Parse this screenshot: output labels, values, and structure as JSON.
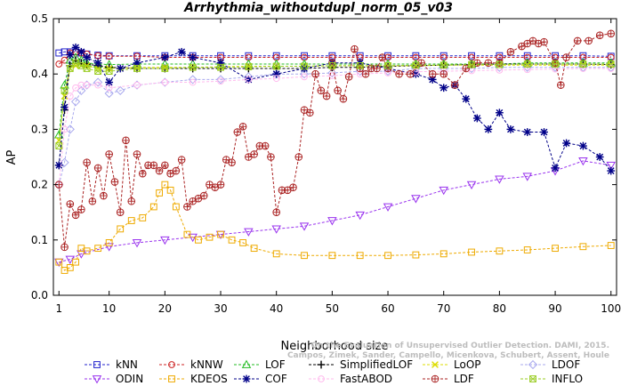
{
  "chart_data": {
    "type": "line",
    "title": "Arrhythmia_withoutdupl_norm_05_v03",
    "xlabel": "Neighborhood size",
    "ylabel": "AP",
    "xlim": [
      0,
      101
    ],
    "ylim": [
      0,
      0.5
    ],
    "xticks": [
      1,
      10,
      20,
      30,
      40,
      50,
      60,
      70,
      80,
      90,
      100
    ],
    "yticks": [
      0.0,
      0.1,
      0.2,
      0.3,
      0.4,
      0.5
    ],
    "grid": false,
    "legend_position": "bottom",
    "watermark": [
      "Campos, Zimek, Sander, Campello, Micenkova, Schubert, Assent, Houle",
      "On the Evaluation of Unsupervised Outlier Detection. DAMI, 2015."
    ],
    "series": [
      {
        "name": "kNN",
        "color": "#2222cc",
        "marker": "square",
        "x": [
          1,
          2,
          3,
          4,
          5,
          6,
          8,
          10,
          15,
          20,
          25,
          30,
          35,
          40,
          45,
          50,
          55,
          60,
          65,
          70,
          75,
          80,
          85,
          90,
          95,
          100
        ],
        "values": [
          0.438,
          0.44,
          0.44,
          0.44,
          0.438,
          0.436,
          0.434,
          0.433,
          0.433,
          0.433,
          0.433,
          0.433,
          0.433,
          0.433,
          0.433,
          0.433,
          0.433,
          0.433,
          0.433,
          0.433,
          0.433,
          0.433,
          0.433,
          0.433,
          0.433,
          0.432
        ]
      },
      {
        "name": "kNNW",
        "color": "#cc2222",
        "marker": "circle",
        "x": [
          1,
          2,
          3,
          4,
          5,
          6,
          8,
          10,
          15,
          20,
          25,
          30,
          35,
          40,
          45,
          50,
          55,
          60,
          65,
          70,
          75,
          80,
          85,
          90,
          95,
          100
        ],
        "values": [
          0.418,
          0.425,
          0.438,
          0.44,
          0.438,
          0.436,
          0.433,
          0.432,
          0.432,
          0.43,
          0.43,
          0.43,
          0.43,
          0.43,
          0.43,
          0.43,
          0.43,
          0.43,
          0.43,
          0.43,
          0.43,
          0.43,
          0.43,
          0.43,
          0.43,
          0.43
        ]
      },
      {
        "name": "LOF",
        "color": "#22bb22",
        "marker": "triangle-up",
        "x": [
          1,
          2,
          3,
          4,
          5,
          6,
          8,
          10,
          15,
          20,
          25,
          30,
          35,
          40,
          45,
          50,
          55,
          60,
          65,
          70,
          75,
          80,
          85,
          90,
          95,
          100
        ],
        "values": [
          0.29,
          0.38,
          0.425,
          0.43,
          0.425,
          0.42,
          0.418,
          0.417,
          0.418,
          0.418,
          0.418,
          0.418,
          0.418,
          0.418,
          0.418,
          0.418,
          0.418,
          0.418,
          0.418,
          0.418,
          0.418,
          0.418,
          0.42,
          0.42,
          0.42,
          0.42
        ]
      },
      {
        "name": "SimplifiedLOF",
        "color": "#000000",
        "marker": "plus",
        "x": [
          1,
          2,
          3,
          4,
          5,
          6,
          8,
          10,
          15,
          20,
          25,
          30,
          35,
          40,
          45,
          50,
          55,
          60,
          65,
          70,
          75,
          80,
          85,
          90,
          95,
          100
        ],
        "values": [
          0.235,
          0.335,
          0.415,
          0.425,
          0.42,
          0.418,
          0.415,
          0.412,
          0.41,
          0.41,
          0.41,
          0.41,
          0.41,
          0.41,
          0.41,
          0.412,
          0.412,
          0.414,
          0.415,
          0.416,
          0.417,
          0.418,
          0.418,
          0.418,
          0.418,
          0.417
        ]
      },
      {
        "name": "LoOP",
        "color": "#dddd00",
        "marker": "x",
        "x": [
          1,
          2,
          3,
          4,
          5,
          6,
          8,
          10,
          15,
          20,
          25,
          30,
          35,
          40,
          45,
          50,
          55,
          60,
          65,
          70,
          75,
          80,
          85,
          90,
          95,
          100
        ],
        "values": [
          0.28,
          0.36,
          0.41,
          0.415,
          0.415,
          0.415,
          0.41,
          0.41,
          0.412,
          0.412,
          0.412,
          0.413,
          0.414,
          0.414,
          0.414,
          0.415,
          0.415,
          0.415,
          0.415,
          0.416,
          0.416,
          0.416,
          0.416,
          0.416,
          0.416,
          0.416
        ]
      },
      {
        "name": "LDOF",
        "color": "#aaaaee",
        "marker": "diamond",
        "x": [
          1,
          2,
          3,
          4,
          5,
          6,
          8,
          10,
          12,
          15,
          20,
          25,
          30,
          35,
          40,
          45,
          50,
          55,
          60,
          65,
          70,
          75,
          80,
          85,
          90,
          95,
          100
        ],
        "values": [
          0.2,
          0.24,
          0.3,
          0.35,
          0.37,
          0.38,
          0.385,
          0.365,
          0.37,
          0.38,
          0.385,
          0.39,
          0.39,
          0.395,
          0.4,
          0.4,
          0.402,
          0.405,
          0.405,
          0.41,
          0.41,
          0.41,
          0.412,
          0.412,
          0.412,
          0.412,
          0.412
        ]
      },
      {
        "name": "ODIN",
        "color": "#9933ee",
        "marker": "triangle-down",
        "x": [
          1,
          3,
          5,
          10,
          15,
          20,
          25,
          30,
          35,
          40,
          45,
          50,
          55,
          60,
          65,
          70,
          75,
          80,
          85,
          90,
          95,
          100
        ],
        "values": [
          0.06,
          0.065,
          0.075,
          0.088,
          0.095,
          0.1,
          0.105,
          0.11,
          0.115,
          0.12,
          0.125,
          0.135,
          0.145,
          0.16,
          0.175,
          0.19,
          0.2,
          0.21,
          0.215,
          0.225,
          0.243,
          0.235
        ]
      },
      {
        "name": "KDEOS",
        "color": "#eeaa00",
        "marker": "square",
        "x": [
          1,
          2,
          3,
          4,
          5,
          6,
          8,
          10,
          12,
          14,
          16,
          18,
          19,
          20,
          21,
          22,
          24,
          26,
          28,
          30,
          32,
          34,
          36,
          40,
          45,
          50,
          55,
          60,
          65,
          70,
          75,
          80,
          85,
          90,
          95,
          100
        ],
        "values": [
          0.06,
          0.045,
          0.05,
          0.06,
          0.085,
          0.08,
          0.085,
          0.095,
          0.12,
          0.135,
          0.14,
          0.16,
          0.185,
          0.2,
          0.19,
          0.16,
          0.11,
          0.1,
          0.105,
          0.11,
          0.1,
          0.095,
          0.085,
          0.075,
          0.072,
          0.072,
          0.072,
          0.072,
          0.073,
          0.075,
          0.078,
          0.08,
          0.082,
          0.085,
          0.088,
          0.09
        ]
      },
      {
        "name": "COF",
        "color": "#000088",
        "marker": "star",
        "x": [
          1,
          2,
          3,
          4,
          5,
          6,
          8,
          10,
          12,
          15,
          20,
          23,
          25,
          30,
          35,
          40,
          45,
          50,
          55,
          60,
          65,
          68,
          70,
          72,
          74,
          76,
          78,
          80,
          82,
          85,
          88,
          90,
          92,
          95,
          98,
          100
        ],
        "values": [
          0.235,
          0.34,
          0.435,
          0.448,
          0.44,
          0.43,
          0.42,
          0.385,
          0.41,
          0.42,
          0.43,
          0.44,
          0.43,
          0.42,
          0.39,
          0.4,
          0.41,
          0.42,
          0.42,
          0.41,
          0.4,
          0.39,
          0.375,
          0.38,
          0.355,
          0.32,
          0.3,
          0.33,
          0.3,
          0.295,
          0.295,
          0.23,
          0.275,
          0.27,
          0.25,
          0.225
        ]
      },
      {
        "name": "FastABOD",
        "color": "#ffbbee",
        "marker": "circle",
        "x": [
          1,
          2,
          3,
          4,
          5,
          6,
          8,
          10,
          15,
          20,
          25,
          30,
          35,
          40,
          45,
          50,
          55,
          60,
          65,
          70,
          75,
          80,
          85,
          90,
          95,
          100
        ],
        "values": [
          0.2,
          0.3,
          0.36,
          0.375,
          0.38,
          0.38,
          0.38,
          0.375,
          0.38,
          0.385,
          0.385,
          0.387,
          0.39,
          0.392,
          0.395,
          0.397,
          0.4,
          0.402,
          0.404,
          0.405,
          0.406,
          0.407,
          0.408,
          0.409,
          0.41,
          0.41
        ]
      },
      {
        "name": "LDF",
        "color": "#aa2222",
        "marker": "circle-plus",
        "x": [
          1,
          2,
          3,
          4,
          5,
          6,
          7,
          8,
          9,
          10,
          11,
          12,
          13,
          14,
          15,
          16,
          17,
          18,
          19,
          20,
          21,
          22,
          23,
          24,
          25,
          26,
          27,
          28,
          29,
          30,
          31,
          32,
          33,
          34,
          35,
          36,
          37,
          38,
          39,
          40,
          41,
          42,
          43,
          44,
          45,
          46,
          47,
          48,
          49,
          50,
          51,
          52,
          53,
          54,
          55,
          56,
          57,
          58,
          59,
          60,
          62,
          64,
          66,
          68,
          70,
          72,
          74,
          76,
          78,
          80,
          82,
          84,
          85,
          86,
          87,
          88,
          90,
          91,
          92,
          94,
          96,
          98,
          100
        ],
        "values": [
          0.2,
          0.087,
          0.165,
          0.145,
          0.155,
          0.24,
          0.17,
          0.23,
          0.18,
          0.255,
          0.205,
          0.15,
          0.28,
          0.17,
          0.255,
          0.22,
          0.235,
          0.235,
          0.225,
          0.235,
          0.22,
          0.225,
          0.245,
          0.16,
          0.17,
          0.175,
          0.18,
          0.2,
          0.195,
          0.2,
          0.245,
          0.24,
          0.295,
          0.305,
          0.25,
          0.255,
          0.27,
          0.27,
          0.25,
          0.15,
          0.19,
          0.19,
          0.195,
          0.25,
          0.335,
          0.33,
          0.4,
          0.37,
          0.36,
          0.42,
          0.37,
          0.355,
          0.395,
          0.445,
          0.41,
          0.4,
          0.41,
          0.41,
          0.43,
          0.41,
          0.4,
          0.4,
          0.42,
          0.4,
          0.4,
          0.38,
          0.41,
          0.42,
          0.42,
          0.42,
          0.44,
          0.45,
          0.455,
          0.46,
          0.455,
          0.458,
          0.42,
          0.38,
          0.43,
          0.46,
          0.46,
          0.47,
          0.473
        ]
      },
      {
        "name": "INFLO",
        "color": "#99cc22",
        "marker": "square-x",
        "x": [
          1,
          2,
          3,
          4,
          5,
          6,
          8,
          10,
          15,
          20,
          25,
          30,
          35,
          40,
          45,
          50,
          55,
          60,
          65,
          70,
          75,
          80,
          85,
          90,
          95,
          100
        ],
        "values": [
          0.27,
          0.37,
          0.41,
          0.42,
          0.415,
          0.41,
          0.405,
          0.405,
          0.41,
          0.41,
          0.412,
          0.412,
          0.413,
          0.414,
          0.414,
          0.415,
          0.415,
          0.415,
          0.416,
          0.416,
          0.417,
          0.417,
          0.418,
          0.418,
          0.418,
          0.418
        ]
      }
    ]
  }
}
